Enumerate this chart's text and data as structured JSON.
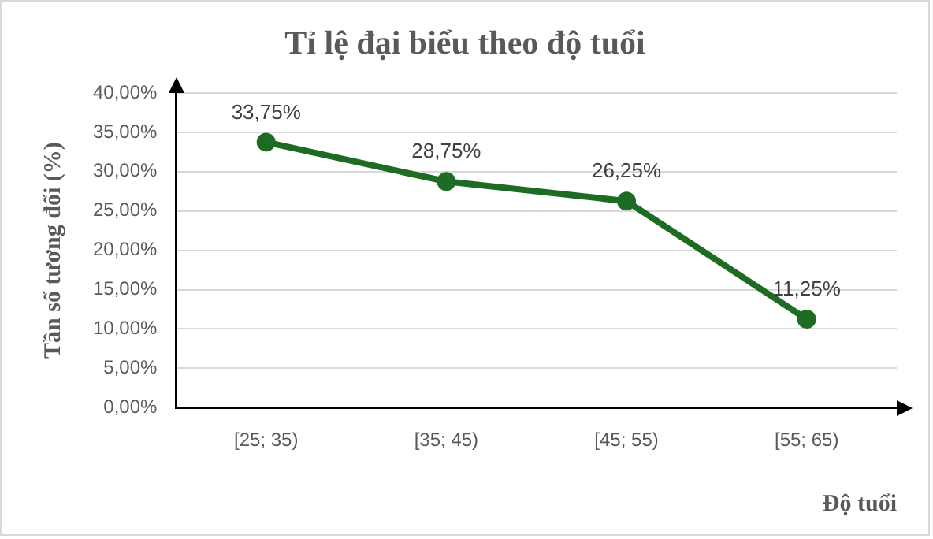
{
  "chart_data": {
    "type": "line",
    "title": "Tỉ lệ đại biểu theo độ tuổi",
    "xlabel": "Độ tuổi",
    "ylabel": "Tần số tương đối (%)",
    "categories": [
      "[25; 35)",
      "[35; 45)",
      "[45; 55)",
      "[55; 65)"
    ],
    "series": [
      {
        "color": "#1e6b23",
        "values": [
          33.75,
          28.75,
          26.25,
          11.25
        ],
        "value_labels": [
          "33,75%",
          "28,75%",
          "26,25%",
          "11,25%"
        ]
      }
    ],
    "ylim": [
      0,
      40
    ],
    "yticks": [
      {
        "value": 0,
        "label": "0,00%"
      },
      {
        "value": 5,
        "label": "5,00%"
      },
      {
        "value": 10,
        "label": "10,00%"
      },
      {
        "value": 15,
        "label": "15,00%"
      },
      {
        "value": 20,
        "label": "20,00%"
      },
      {
        "value": 25,
        "label": "25,00%"
      },
      {
        "value": 30,
        "label": "30,00%"
      },
      {
        "value": 35,
        "label": "35,00%"
      },
      {
        "value": 40,
        "label": "40,00%"
      }
    ],
    "grid": "y",
    "legend": false,
    "marker": "circle",
    "line_style": "solid"
  }
}
